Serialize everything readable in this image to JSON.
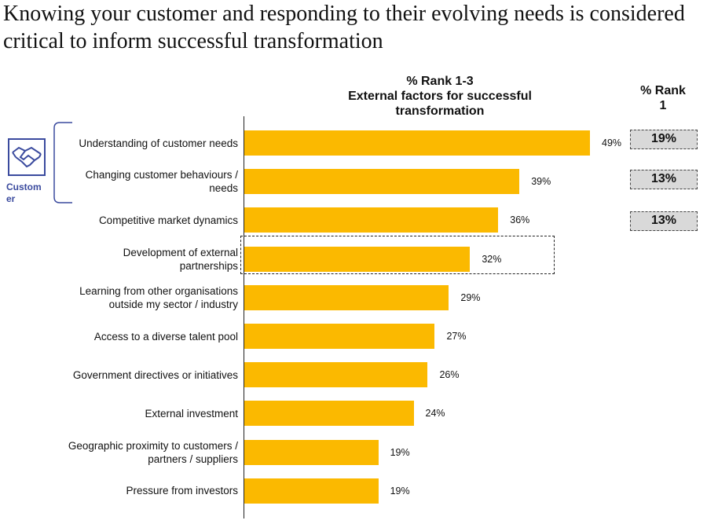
{
  "page_title": "Knowing your customer and responding to their evolving needs is considered critical to inform successful transformation",
  "customer_group": {
    "label": "Custom\ner",
    "icon": "handshake-icon",
    "color": "#3a4a9e"
  },
  "colors": {
    "bar": "#fbb900",
    "rank1_box": "#d9d9d9"
  },
  "rank1_heading": "% Rank\n1",
  "chart_data": {
    "type": "bar",
    "orientation": "horizontal",
    "title": "% Rank 1-3\nExternal factors for successful\ntransformation",
    "categories": [
      "Understanding of customer needs",
      "Changing customer behaviours /\nneeds",
      "Competitive market dynamics",
      "Development of external\npartnerships",
      "Learning from other organisations\noutside my sector / industry",
      "Access to a diverse talent pool",
      "Government directives or initiatives",
      "External investment",
      "Geographic proximity to customers /\npartners / suppliers",
      "Pressure from investors"
    ],
    "values": [
      49,
      39,
      36,
      32,
      29,
      27,
      26,
      24,
      19,
      19
    ],
    "value_labels": [
      "49%",
      "39%",
      "36%",
      "32%",
      "29%",
      "27%",
      "26%",
      "24%",
      "19%",
      "19%"
    ],
    "rank1_values": [
      "19%",
      "13%",
      "13%"
    ],
    "xlim": [
      0,
      50
    ],
    "grid": false,
    "highlighted_category": "Development of external\npartnerships"
  }
}
